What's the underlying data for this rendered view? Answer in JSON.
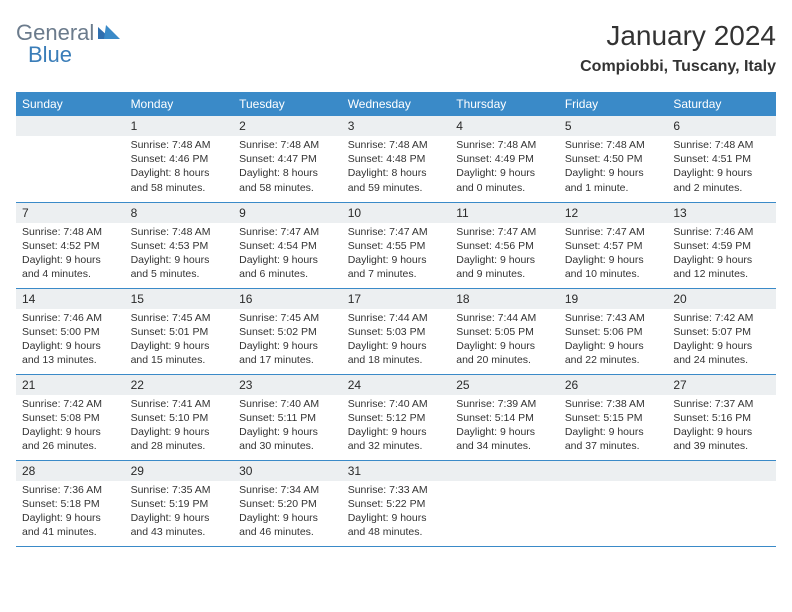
{
  "logo": {
    "part1": "General",
    "part2": "Blue"
  },
  "title": "January 2024",
  "location": "Compiobbi, Tuscany, Italy",
  "colors": {
    "header_bg": "#3a8ac8",
    "header_text": "#ffffff",
    "daynum_bg": "#eceff1",
    "row_border": "#3a8ac8",
    "logo_gray": "#6b7b8c",
    "logo_blue": "#3a7db8"
  },
  "daynames": [
    "Sunday",
    "Monday",
    "Tuesday",
    "Wednesday",
    "Thursday",
    "Friday",
    "Saturday"
  ],
  "weeks": [
    [
      null,
      {
        "n": "1",
        "sr": "Sunrise: 7:48 AM",
        "ss": "Sunset: 4:46 PM",
        "d1": "Daylight: 8 hours",
        "d2": "and 58 minutes."
      },
      {
        "n": "2",
        "sr": "Sunrise: 7:48 AM",
        "ss": "Sunset: 4:47 PM",
        "d1": "Daylight: 8 hours",
        "d2": "and 58 minutes."
      },
      {
        "n": "3",
        "sr": "Sunrise: 7:48 AM",
        "ss": "Sunset: 4:48 PM",
        "d1": "Daylight: 8 hours",
        "d2": "and 59 minutes."
      },
      {
        "n": "4",
        "sr": "Sunrise: 7:48 AM",
        "ss": "Sunset: 4:49 PM",
        "d1": "Daylight: 9 hours",
        "d2": "and 0 minutes."
      },
      {
        "n": "5",
        "sr": "Sunrise: 7:48 AM",
        "ss": "Sunset: 4:50 PM",
        "d1": "Daylight: 9 hours",
        "d2": "and 1 minute."
      },
      {
        "n": "6",
        "sr": "Sunrise: 7:48 AM",
        "ss": "Sunset: 4:51 PM",
        "d1": "Daylight: 9 hours",
        "d2": "and 2 minutes."
      }
    ],
    [
      {
        "n": "7",
        "sr": "Sunrise: 7:48 AM",
        "ss": "Sunset: 4:52 PM",
        "d1": "Daylight: 9 hours",
        "d2": "and 4 minutes."
      },
      {
        "n": "8",
        "sr": "Sunrise: 7:48 AM",
        "ss": "Sunset: 4:53 PM",
        "d1": "Daylight: 9 hours",
        "d2": "and 5 minutes."
      },
      {
        "n": "9",
        "sr": "Sunrise: 7:47 AM",
        "ss": "Sunset: 4:54 PM",
        "d1": "Daylight: 9 hours",
        "d2": "and 6 minutes."
      },
      {
        "n": "10",
        "sr": "Sunrise: 7:47 AM",
        "ss": "Sunset: 4:55 PM",
        "d1": "Daylight: 9 hours",
        "d2": "and 7 minutes."
      },
      {
        "n": "11",
        "sr": "Sunrise: 7:47 AM",
        "ss": "Sunset: 4:56 PM",
        "d1": "Daylight: 9 hours",
        "d2": "and 9 minutes."
      },
      {
        "n": "12",
        "sr": "Sunrise: 7:47 AM",
        "ss": "Sunset: 4:57 PM",
        "d1": "Daylight: 9 hours",
        "d2": "and 10 minutes."
      },
      {
        "n": "13",
        "sr": "Sunrise: 7:46 AM",
        "ss": "Sunset: 4:59 PM",
        "d1": "Daylight: 9 hours",
        "d2": "and 12 minutes."
      }
    ],
    [
      {
        "n": "14",
        "sr": "Sunrise: 7:46 AM",
        "ss": "Sunset: 5:00 PM",
        "d1": "Daylight: 9 hours",
        "d2": "and 13 minutes."
      },
      {
        "n": "15",
        "sr": "Sunrise: 7:45 AM",
        "ss": "Sunset: 5:01 PM",
        "d1": "Daylight: 9 hours",
        "d2": "and 15 minutes."
      },
      {
        "n": "16",
        "sr": "Sunrise: 7:45 AM",
        "ss": "Sunset: 5:02 PM",
        "d1": "Daylight: 9 hours",
        "d2": "and 17 minutes."
      },
      {
        "n": "17",
        "sr": "Sunrise: 7:44 AM",
        "ss": "Sunset: 5:03 PM",
        "d1": "Daylight: 9 hours",
        "d2": "and 18 minutes."
      },
      {
        "n": "18",
        "sr": "Sunrise: 7:44 AM",
        "ss": "Sunset: 5:05 PM",
        "d1": "Daylight: 9 hours",
        "d2": "and 20 minutes."
      },
      {
        "n": "19",
        "sr": "Sunrise: 7:43 AM",
        "ss": "Sunset: 5:06 PM",
        "d1": "Daylight: 9 hours",
        "d2": "and 22 minutes."
      },
      {
        "n": "20",
        "sr": "Sunrise: 7:42 AM",
        "ss": "Sunset: 5:07 PM",
        "d1": "Daylight: 9 hours",
        "d2": "and 24 minutes."
      }
    ],
    [
      {
        "n": "21",
        "sr": "Sunrise: 7:42 AM",
        "ss": "Sunset: 5:08 PM",
        "d1": "Daylight: 9 hours",
        "d2": "and 26 minutes."
      },
      {
        "n": "22",
        "sr": "Sunrise: 7:41 AM",
        "ss": "Sunset: 5:10 PM",
        "d1": "Daylight: 9 hours",
        "d2": "and 28 minutes."
      },
      {
        "n": "23",
        "sr": "Sunrise: 7:40 AM",
        "ss": "Sunset: 5:11 PM",
        "d1": "Daylight: 9 hours",
        "d2": "and 30 minutes."
      },
      {
        "n": "24",
        "sr": "Sunrise: 7:40 AM",
        "ss": "Sunset: 5:12 PM",
        "d1": "Daylight: 9 hours",
        "d2": "and 32 minutes."
      },
      {
        "n": "25",
        "sr": "Sunrise: 7:39 AM",
        "ss": "Sunset: 5:14 PM",
        "d1": "Daylight: 9 hours",
        "d2": "and 34 minutes."
      },
      {
        "n": "26",
        "sr": "Sunrise: 7:38 AM",
        "ss": "Sunset: 5:15 PM",
        "d1": "Daylight: 9 hours",
        "d2": "and 37 minutes."
      },
      {
        "n": "27",
        "sr": "Sunrise: 7:37 AM",
        "ss": "Sunset: 5:16 PM",
        "d1": "Daylight: 9 hours",
        "d2": "and 39 minutes."
      }
    ],
    [
      {
        "n": "28",
        "sr": "Sunrise: 7:36 AM",
        "ss": "Sunset: 5:18 PM",
        "d1": "Daylight: 9 hours",
        "d2": "and 41 minutes."
      },
      {
        "n": "29",
        "sr": "Sunrise: 7:35 AM",
        "ss": "Sunset: 5:19 PM",
        "d1": "Daylight: 9 hours",
        "d2": "and 43 minutes."
      },
      {
        "n": "30",
        "sr": "Sunrise: 7:34 AM",
        "ss": "Sunset: 5:20 PM",
        "d1": "Daylight: 9 hours",
        "d2": "and 46 minutes."
      },
      {
        "n": "31",
        "sr": "Sunrise: 7:33 AM",
        "ss": "Sunset: 5:22 PM",
        "d1": "Daylight: 9 hours",
        "d2": "and 48 minutes."
      },
      null,
      null,
      null
    ]
  ]
}
